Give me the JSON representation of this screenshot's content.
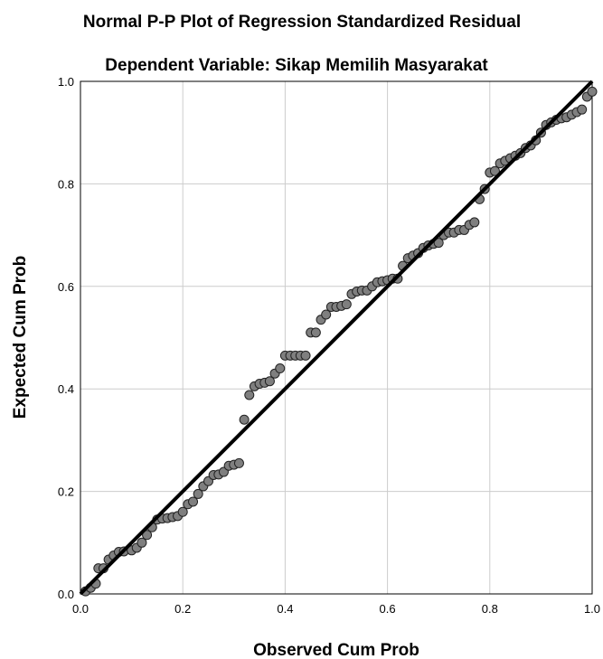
{
  "chart_data": {
    "type": "scatter",
    "title": "Normal P-P Plot of Regression Standardized Residual",
    "subtitle": "Dependent Variable: Sikap Memilih Masyarakat",
    "xlabel": "Observed Cum Prob",
    "ylabel": "Expected Cum Prob",
    "xlim": [
      0,
      1
    ],
    "ylim": [
      0,
      1
    ],
    "x_ticks": [
      "0.0",
      "0.2",
      "0.4",
      "0.6",
      "0.8",
      "1.0"
    ],
    "y_ticks": [
      "0.0",
      "0.2",
      "0.4",
      "0.6",
      "0.8",
      "1.0"
    ],
    "grid": true,
    "reference_line": {
      "x": [
        0,
        1
      ],
      "y": [
        0,
        1
      ]
    },
    "colors": {
      "marker_fill": "#7f7f7f",
      "marker_stroke": "#222222",
      "line": "#000000",
      "grid": "#cccccc"
    },
    "points": [
      [
        0.01,
        0.005
      ],
      [
        0.02,
        0.012
      ],
      [
        0.03,
        0.02
      ],
      [
        0.035,
        0.05
      ],
      [
        0.045,
        0.05
      ],
      [
        0.055,
        0.067
      ],
      [
        0.065,
        0.075
      ],
      [
        0.075,
        0.082
      ],
      [
        0.085,
        0.083
      ],
      [
        0.1,
        0.085
      ],
      [
        0.11,
        0.09
      ],
      [
        0.12,
        0.1
      ],
      [
        0.13,
        0.115
      ],
      [
        0.14,
        0.13
      ],
      [
        0.15,
        0.145
      ],
      [
        0.16,
        0.147
      ],
      [
        0.17,
        0.148
      ],
      [
        0.18,
        0.15
      ],
      [
        0.19,
        0.152
      ],
      [
        0.2,
        0.16
      ],
      [
        0.21,
        0.175
      ],
      [
        0.22,
        0.18
      ],
      [
        0.23,
        0.195
      ],
      [
        0.24,
        0.21
      ],
      [
        0.25,
        0.22
      ],
      [
        0.26,
        0.232
      ],
      [
        0.27,
        0.233
      ],
      [
        0.28,
        0.238
      ],
      [
        0.29,
        0.25
      ],
      [
        0.3,
        0.252
      ],
      [
        0.31,
        0.255
      ],
      [
        0.32,
        0.34
      ],
      [
        0.33,
        0.388
      ],
      [
        0.34,
        0.405
      ],
      [
        0.35,
        0.41
      ],
      [
        0.36,
        0.412
      ],
      [
        0.37,
        0.415
      ],
      [
        0.38,
        0.43
      ],
      [
        0.39,
        0.44
      ],
      [
        0.4,
        0.465
      ],
      [
        0.41,
        0.465
      ],
      [
        0.42,
        0.465
      ],
      [
        0.43,
        0.465
      ],
      [
        0.44,
        0.465
      ],
      [
        0.45,
        0.51
      ],
      [
        0.46,
        0.51
      ],
      [
        0.47,
        0.535
      ],
      [
        0.48,
        0.545
      ],
      [
        0.49,
        0.56
      ],
      [
        0.5,
        0.56
      ],
      [
        0.51,
        0.562
      ],
      [
        0.52,
        0.565
      ],
      [
        0.53,
        0.585
      ],
      [
        0.54,
        0.59
      ],
      [
        0.55,
        0.592
      ],
      [
        0.56,
        0.592
      ],
      [
        0.57,
        0.6
      ],
      [
        0.58,
        0.608
      ],
      [
        0.59,
        0.61
      ],
      [
        0.6,
        0.612
      ],
      [
        0.61,
        0.615
      ],
      [
        0.62,
        0.615
      ],
      [
        0.63,
        0.64
      ],
      [
        0.64,
        0.655
      ],
      [
        0.65,
        0.66
      ],
      [
        0.66,
        0.665
      ],
      [
        0.67,
        0.675
      ],
      [
        0.68,
        0.68
      ],
      [
        0.69,
        0.683
      ],
      [
        0.7,
        0.685
      ],
      [
        0.71,
        0.7
      ],
      [
        0.72,
        0.705
      ],
      [
        0.73,
        0.705
      ],
      [
        0.74,
        0.71
      ],
      [
        0.75,
        0.71
      ],
      [
        0.76,
        0.72
      ],
      [
        0.77,
        0.725
      ],
      [
        0.78,
        0.77
      ],
      [
        0.79,
        0.79
      ],
      [
        0.8,
        0.822
      ],
      [
        0.81,
        0.825
      ],
      [
        0.82,
        0.84
      ],
      [
        0.83,
        0.845
      ],
      [
        0.84,
        0.85
      ],
      [
        0.85,
        0.855
      ],
      [
        0.86,
        0.86
      ],
      [
        0.87,
        0.87
      ],
      [
        0.88,
        0.875
      ],
      [
        0.89,
        0.885
      ],
      [
        0.9,
        0.9
      ],
      [
        0.91,
        0.915
      ],
      [
        0.92,
        0.92
      ],
      [
        0.93,
        0.925
      ],
      [
        0.94,
        0.928
      ],
      [
        0.95,
        0.93
      ],
      [
        0.96,
        0.935
      ],
      [
        0.97,
        0.94
      ],
      [
        0.98,
        0.945
      ],
      [
        0.99,
        0.97
      ],
      [
        1.0,
        0.98
      ]
    ]
  }
}
